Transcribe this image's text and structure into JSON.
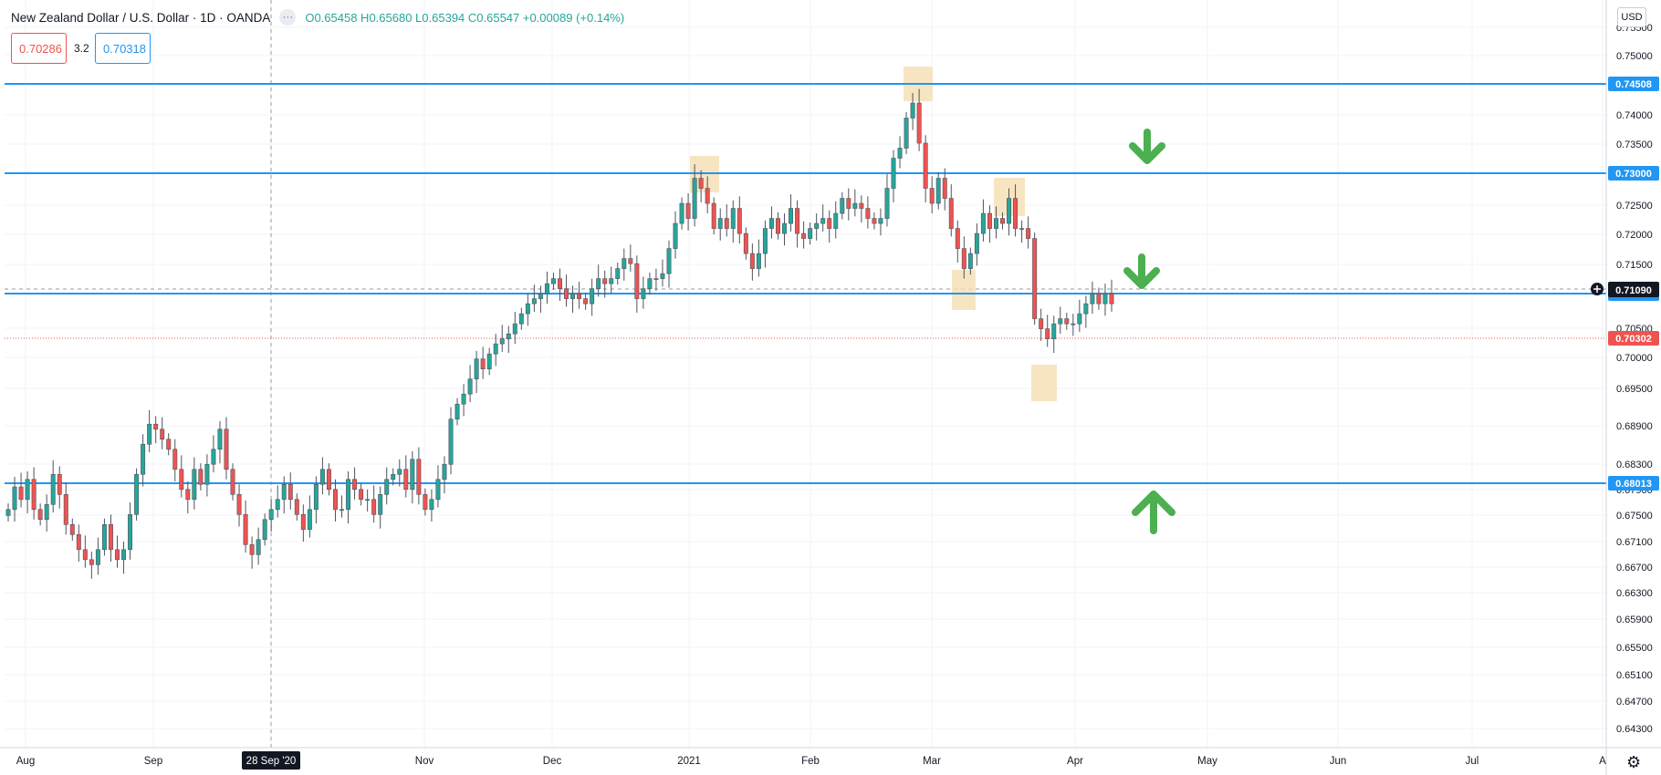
{
  "header": {
    "symbol_title": "New Zealand Dollar / U.S. Dollar · 1D · OANDA",
    "ohlc": "O0.65458 H0.65680 L0.65394 C0.65547 +0.00089 (+0.14%)",
    "more_label": "···"
  },
  "trade": {
    "sell_price": "0.70286",
    "spread": "3.2",
    "buy_price": "0.70318"
  },
  "currency_label": "USD",
  "settings_icon": "gear-icon",
  "date_axis": {
    "labels": [
      "Aug",
      "Sep",
      "28 Sep '20",
      "Nov",
      "Dec",
      "2021",
      "Feb",
      "Mar",
      "Apr",
      "May",
      "Jun",
      "Jul",
      "A"
    ],
    "highlighted": "28 Sep '20"
  },
  "price_axis": {
    "ticks": [
      "0.75500",
      "0.75000",
      "0.74000",
      "0.73500",
      "0.72500",
      "0.72000",
      "0.71500",
      "0.70500",
      "0.70000",
      "0.69500",
      "0.68900",
      "0.68300",
      "0.67900",
      "0.67500",
      "0.67100",
      "0.66700",
      "0.66300",
      "0.65900",
      "0.65500",
      "0.65100",
      "0.64700",
      "0.64300"
    ]
  },
  "horizontal_lines": [
    {
      "price": "0.74508",
      "color": "#2196f3"
    },
    {
      "price": "0.73000",
      "color": "#2196f3"
    },
    {
      "price": "0.71090",
      "color": "#2196f3"
    },
    {
      "price": "0.68013",
      "color": "#2196f3"
    }
  ],
  "crosshair_price": "0.71090",
  "last_price": {
    "value": "0.70302",
    "color": "#ef5350"
  },
  "colors": {
    "up": "#26a69a",
    "down": "#ef5350",
    "line": "#2196f3",
    "arrow": "#4caf50",
    "highlight": "#f5deb3"
  },
  "arrows": [
    {
      "direction": "down",
      "icon": "arrow-down-icon"
    },
    {
      "direction": "down",
      "icon": "arrow-down-icon"
    },
    {
      "direction": "up",
      "icon": "arrow-up-icon"
    }
  ],
  "chart_data": {
    "type": "candlestick",
    "title": "New Zealand Dollar / U.S. Dollar · 1D · OANDA",
    "xlabel": "",
    "ylabel": "",
    "ylim": [
      0.6405,
      0.7565
    ],
    "grid": true,
    "legend": "top-left",
    "x_start": "Aug 2020",
    "x_end": "early Apr 2021",
    "closes": [
      0.662,
      0.6665,
      0.664,
      0.668,
      0.662,
      0.66,
      0.663,
      0.669,
      0.665,
      0.659,
      0.657,
      0.654,
      0.652,
      0.651,
      0.654,
      0.659,
      0.654,
      0.652,
      0.654,
      0.661,
      0.669,
      0.675,
      0.679,
      0.678,
      0.676,
      0.674,
      0.67,
      0.666,
      0.664,
      0.67,
      0.667,
      0.671,
      0.674,
      0.678,
      0.67,
      0.665,
      0.661,
      0.655,
      0.653,
      0.656,
      0.66,
      0.662,
      0.664,
      0.667,
      0.664,
      0.661,
      0.658,
      0.662,
      0.667,
      0.67,
      0.666,
      0.662,
      0.662,
      0.668,
      0.666,
      0.664,
      0.664,
      0.661,
      0.665,
      0.668,
      0.669,
      0.67,
      0.666,
      0.672,
      0.665,
      0.662,
      0.664,
      0.668,
      0.671,
      0.68,
      0.683,
      0.685,
      0.688,
      0.692,
      0.69,
      0.693,
      0.695,
      0.696,
      0.697,
      0.699,
      0.701,
      0.703,
      0.704,
      0.705,
      0.707,
      0.708,
      0.706,
      0.704,
      0.705,
      0.704,
      0.703,
      0.706,
      0.708,
      0.707,
      0.708,
      0.71,
      0.712,
      0.711,
      0.704,
      0.706,
      0.708,
      0.708,
      0.709,
      0.714,
      0.719,
      0.723,
      0.72,
      0.728,
      0.726,
      0.723,
      0.718,
      0.72,
      0.718,
      0.722,
      0.717,
      0.713,
      0.71,
      0.713,
      0.718,
      0.72,
      0.717,
      0.719,
      0.722,
      0.717,
      0.716,
      0.718,
      0.719,
      0.72,
      0.718,
      0.721,
      0.724,
      0.722,
      0.723,
      0.722,
      0.72,
      0.719,
      0.72,
      0.726,
      0.732,
      0.734,
      0.74,
      0.743,
      0.735,
      0.726,
      0.723,
      0.728,
      0.724,
      0.718,
      0.714,
      0.71,
      0.713,
      0.717,
      0.721,
      0.718,
      0.72,
      0.719,
      0.724,
      0.718,
      0.718,
      0.716,
      0.7,
      0.698,
      0.696,
      0.699,
      0.7,
      0.699,
      0.699,
      0.701,
      0.703,
      0.705,
      0.703,
      0.705,
      0.703
    ]
  }
}
